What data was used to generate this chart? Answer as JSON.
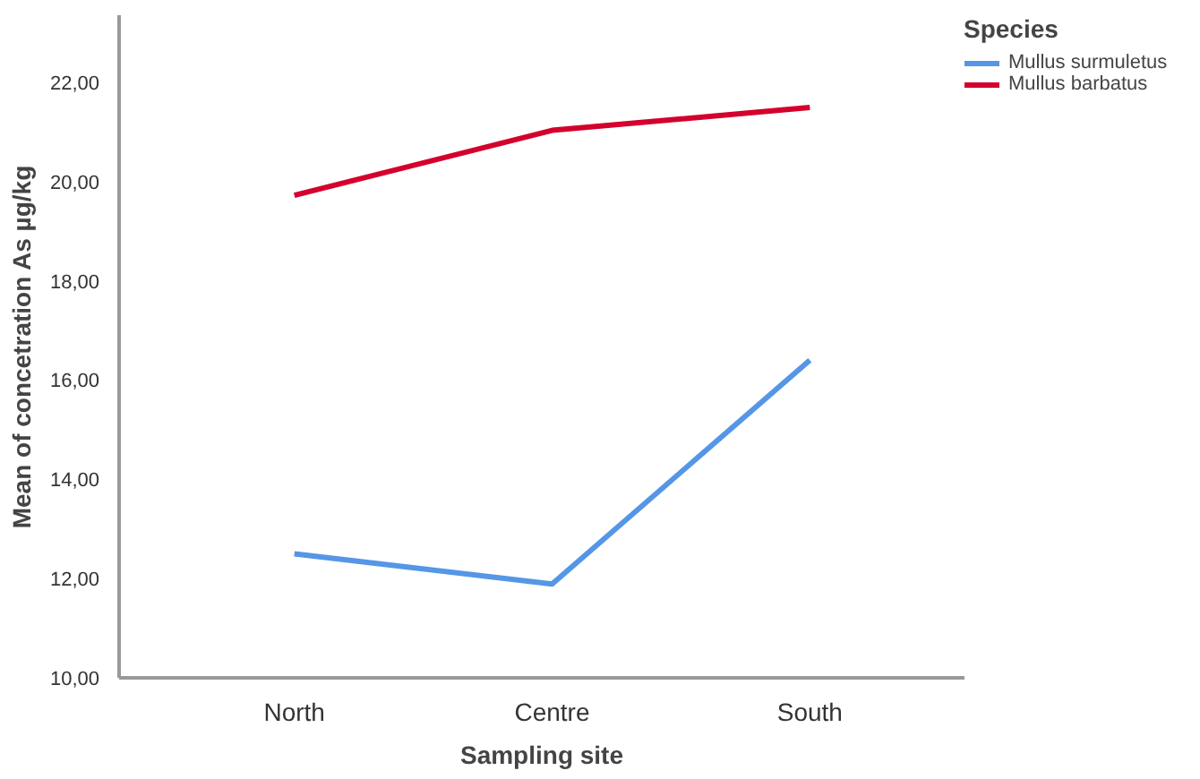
{
  "chart_data": {
    "type": "line",
    "xlabel": "Sampling site",
    "ylabel": "Mean of concetration As µg/kg",
    "legend_title": "Species",
    "categories": [
      "North",
      "Centre",
      "South"
    ],
    "series": [
      {
        "name": "Mullus surmuletus",
        "color": "#5596e6",
        "values": [
          12.5,
          11.89,
          16.4
        ]
      },
      {
        "name": "Mullus barbatus",
        "color": "#d4002d",
        "values": [
          19.72,
          21.03,
          21.49
        ]
      }
    ],
    "ylim": [
      10,
      23.35
    ],
    "yticks": [
      {
        "value": 10,
        "label": "10,00"
      },
      {
        "value": 12,
        "label": "12,00"
      },
      {
        "value": 14,
        "label": "14,00"
      },
      {
        "value": 16,
        "label": "16,00"
      },
      {
        "value": 18,
        "label": "18,00"
      },
      {
        "value": 20,
        "label": "20,00"
      },
      {
        "value": 22,
        "label": "22,00"
      }
    ],
    "legend": "right",
    "marker": "none",
    "line_style": "solid"
  }
}
